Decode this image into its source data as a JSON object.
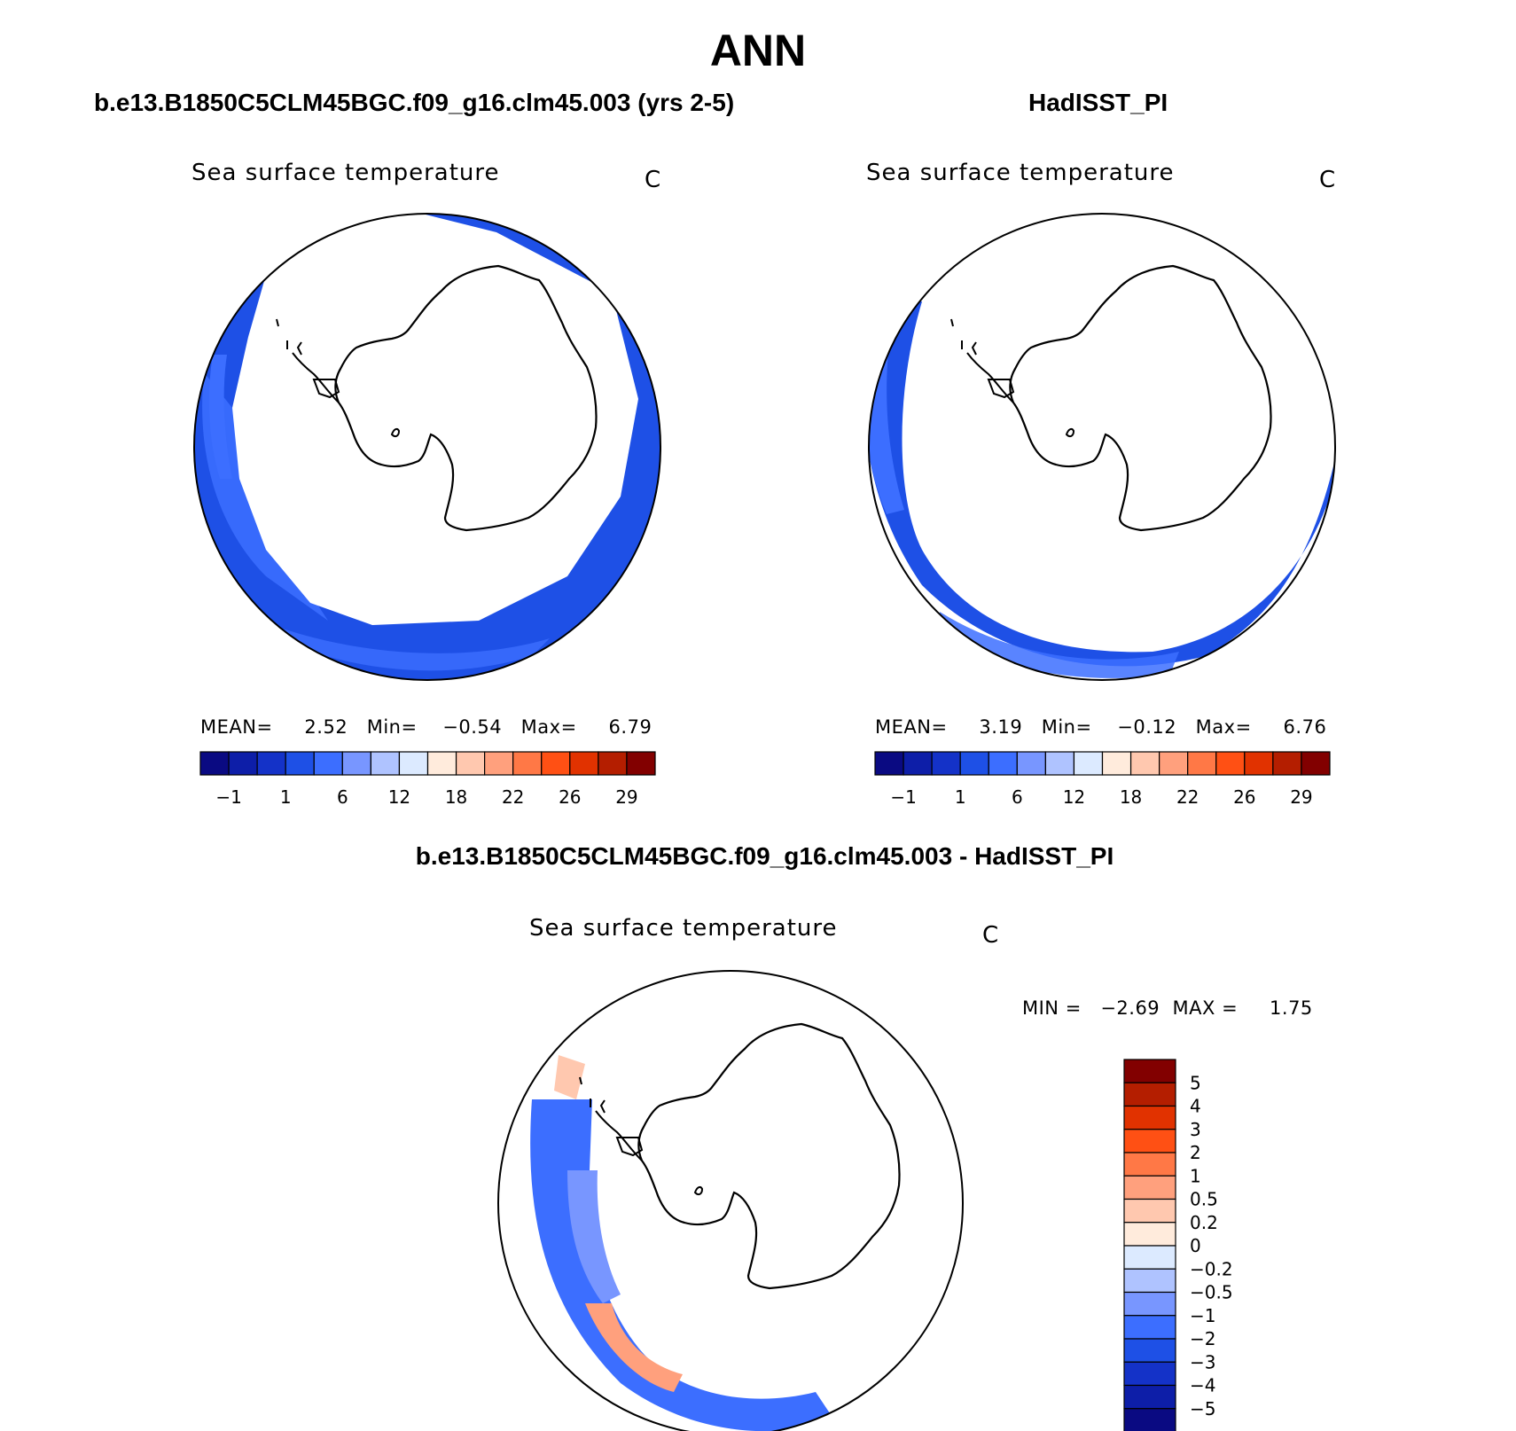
{
  "figure_title": "ANN",
  "panels": [
    {
      "case": "b.e13.B1850C5CLM45BGC.f09_g16.clm45.003 (yrs 2-5)",
      "variable": "Sea surface temperature",
      "units": "C",
      "stats_text": "MEAN=     2.52   Min=    −0.54   Max=     6.79",
      "mean": 2.52,
      "min": -0.54,
      "max": 6.79
    },
    {
      "case": "HadISST_PI",
      "variable": "Sea surface temperature",
      "units": "C",
      "stats_text": "MEAN=     3.19   Min=    −0.12   Max=     6.76",
      "mean": 3.19,
      "min": -0.12,
      "max": 6.76
    },
    {
      "case": "b.e13.B1850C5CLM45BGC.f09_g16.clm45.003 - HadISST_PI",
      "variable": "Sea surface temperature",
      "units": "C",
      "stats_text": "MIN =   −2.69  MAX =     1.75",
      "min": -2.69,
      "max": 1.75
    }
  ],
  "colorbar_abs": {
    "colors": [
      "#0a0a82",
      "#0d1ea8",
      "#1432c8",
      "#1e50e6",
      "#3c6eff",
      "#7896ff",
      "#afc3ff",
      "#dceaff",
      "#ffebdc",
      "#ffc8af",
      "#ffa07d",
      "#ff7846",
      "#ff5014",
      "#e13200",
      "#b41e00",
      "#820000"
    ],
    "labels": [
      "−1",
      "1",
      "6",
      "12",
      "18",
      "22",
      "26",
      "29"
    ]
  },
  "colorbar_diff": {
    "colors": [
      "#820000",
      "#b41e00",
      "#e13200",
      "#ff5014",
      "#ff7846",
      "#ffa07d",
      "#ffc8af",
      "#ffebdc",
      "#dceaff",
      "#afc3ff",
      "#7896ff",
      "#3c6eff",
      "#1e50e6",
      "#1432c8",
      "#0d1ea8",
      "#0a0a82"
    ],
    "labels": [
      "5",
      "4",
      "3",
      "2",
      "1",
      "0.5",
      "0.2",
      "0",
      "−0.2",
      "−0.5",
      "−1",
      "−2",
      "−3",
      "−4",
      "−5"
    ]
  }
}
